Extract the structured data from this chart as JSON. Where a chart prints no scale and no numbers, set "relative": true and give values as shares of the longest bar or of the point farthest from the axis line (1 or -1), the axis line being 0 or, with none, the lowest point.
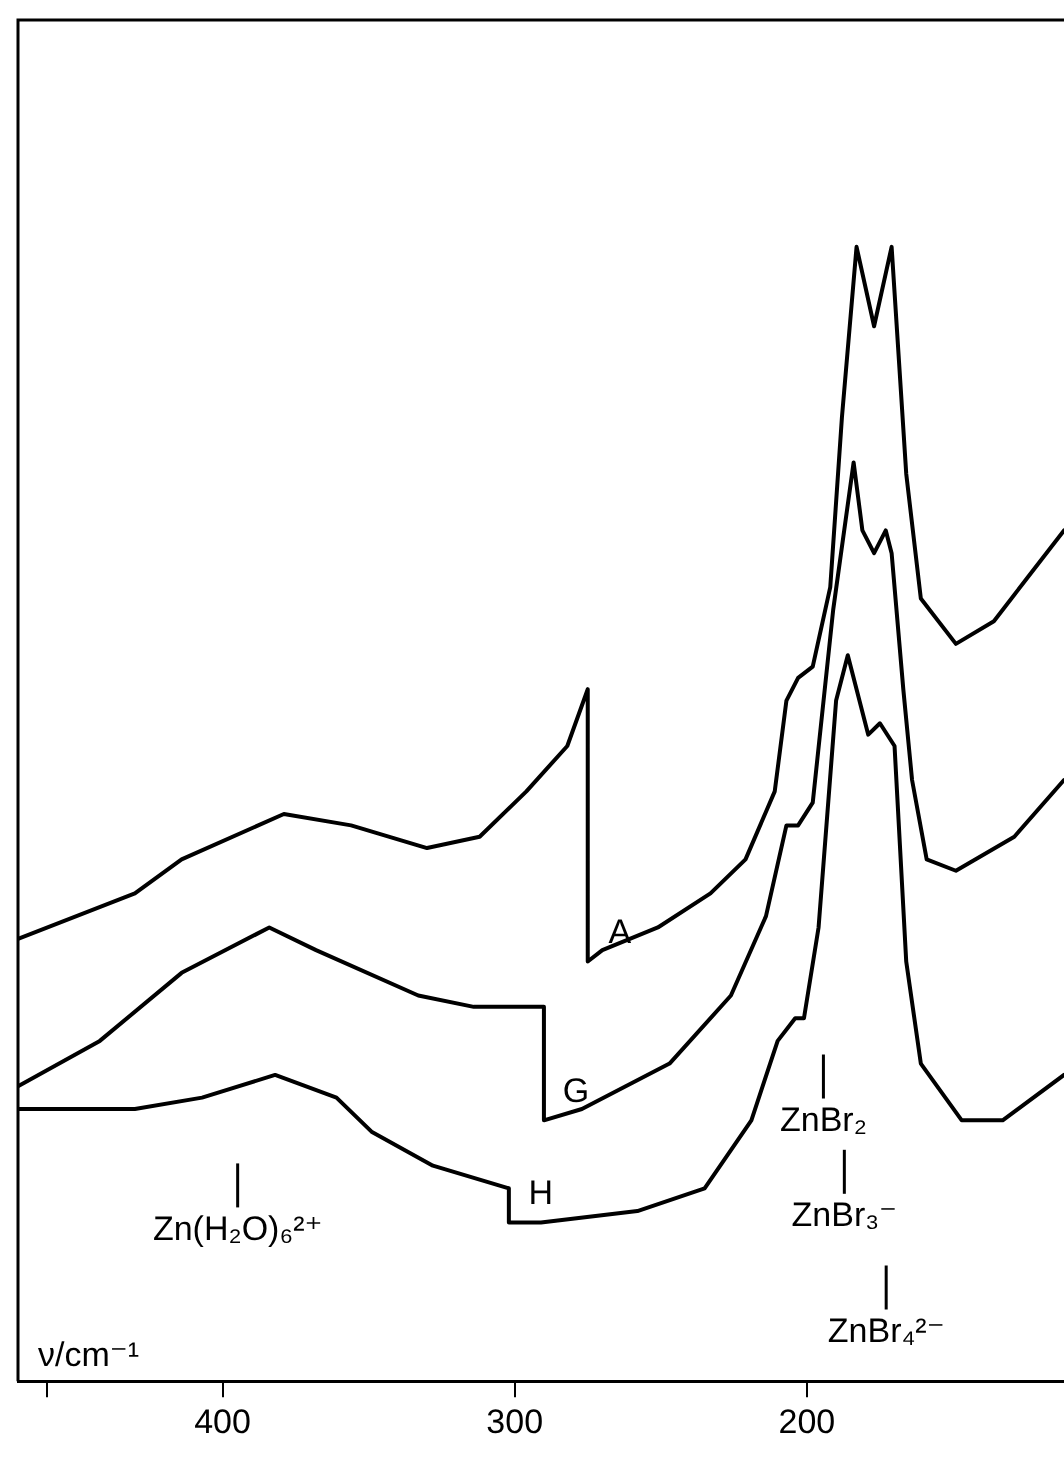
{
  "chart_data": {
    "type": "line",
    "relative": true,
    "xlabel": "ν/cm⁻¹",
    "xlim": [
      470,
      112
    ],
    "xticks": [
      {
        "value": 460,
        "label": null
      },
      400,
      300,
      200
    ],
    "grid": false,
    "legend": false,
    "marker": "none",
    "series": [
      {
        "name": "A",
        "color": "#000000",
        "x": [
          470,
          430,
          414,
          379,
          356,
          330,
          312,
          296,
          282,
          275,
          275,
          270,
          251,
          233,
          221,
          211,
          207,
          203,
          198,
          192,
          188,
          183,
          177,
          171,
          166,
          161,
          149,
          136,
          124,
          112
        ],
        "values": [
          0.39,
          0.43,
          0.46,
          0.5,
          0.49,
          0.47,
          0.48,
          0.52,
          0.56,
          0.61,
          0.37,
          0.38,
          0.4,
          0.43,
          0.46,
          0.52,
          0.6,
          0.62,
          0.63,
          0.7,
          0.85,
          1.0,
          0.93,
          1.0,
          0.8,
          0.69,
          0.65,
          0.67,
          0.71,
          0.75
        ]
      },
      {
        "name": "G",
        "color": "#000000",
        "x": [
          470,
          442,
          414,
          384,
          368,
          333,
          314,
          290,
          290,
          277,
          247,
          226,
          214,
          207,
          203,
          198,
          191,
          184,
          181,
          177,
          173,
          171,
          167,
          164,
          159,
          149,
          129,
          112
        ],
        "values": [
          0.26,
          0.3,
          0.36,
          0.4,
          0.38,
          0.34,
          0.33,
          0.33,
          0.23,
          0.24,
          0.28,
          0.34,
          0.41,
          0.49,
          0.49,
          0.51,
          0.68,
          0.81,
          0.75,
          0.73,
          0.75,
          0.73,
          0.61,
          0.53,
          0.46,
          0.45,
          0.48,
          0.53
        ]
      },
      {
        "name": "H",
        "color": "#000000",
        "x": [
          470,
          430,
          407,
          382,
          361,
          349,
          328,
          302,
          302,
          291,
          258,
          235,
          219,
          210,
          204,
          201,
          196,
          190,
          186,
          179,
          175,
          170,
          166,
          161,
          147,
          133,
          112
        ],
        "values": [
          0.24,
          0.24,
          0.25,
          0.27,
          0.25,
          0.22,
          0.19,
          0.17,
          0.14,
          0.14,
          0.15,
          0.17,
          0.23,
          0.3,
          0.32,
          0.32,
          0.4,
          0.6,
          0.64,
          0.57,
          0.58,
          0.56,
          0.37,
          0.28,
          0.23,
          0.23,
          0.27
        ]
      }
    ],
    "annotations": [
      "Zn(H₂O)₆²⁺",
      "ZnBr₂",
      "ZnBr₃⁻",
      "ZnBr₄²⁻"
    ]
  }
}
